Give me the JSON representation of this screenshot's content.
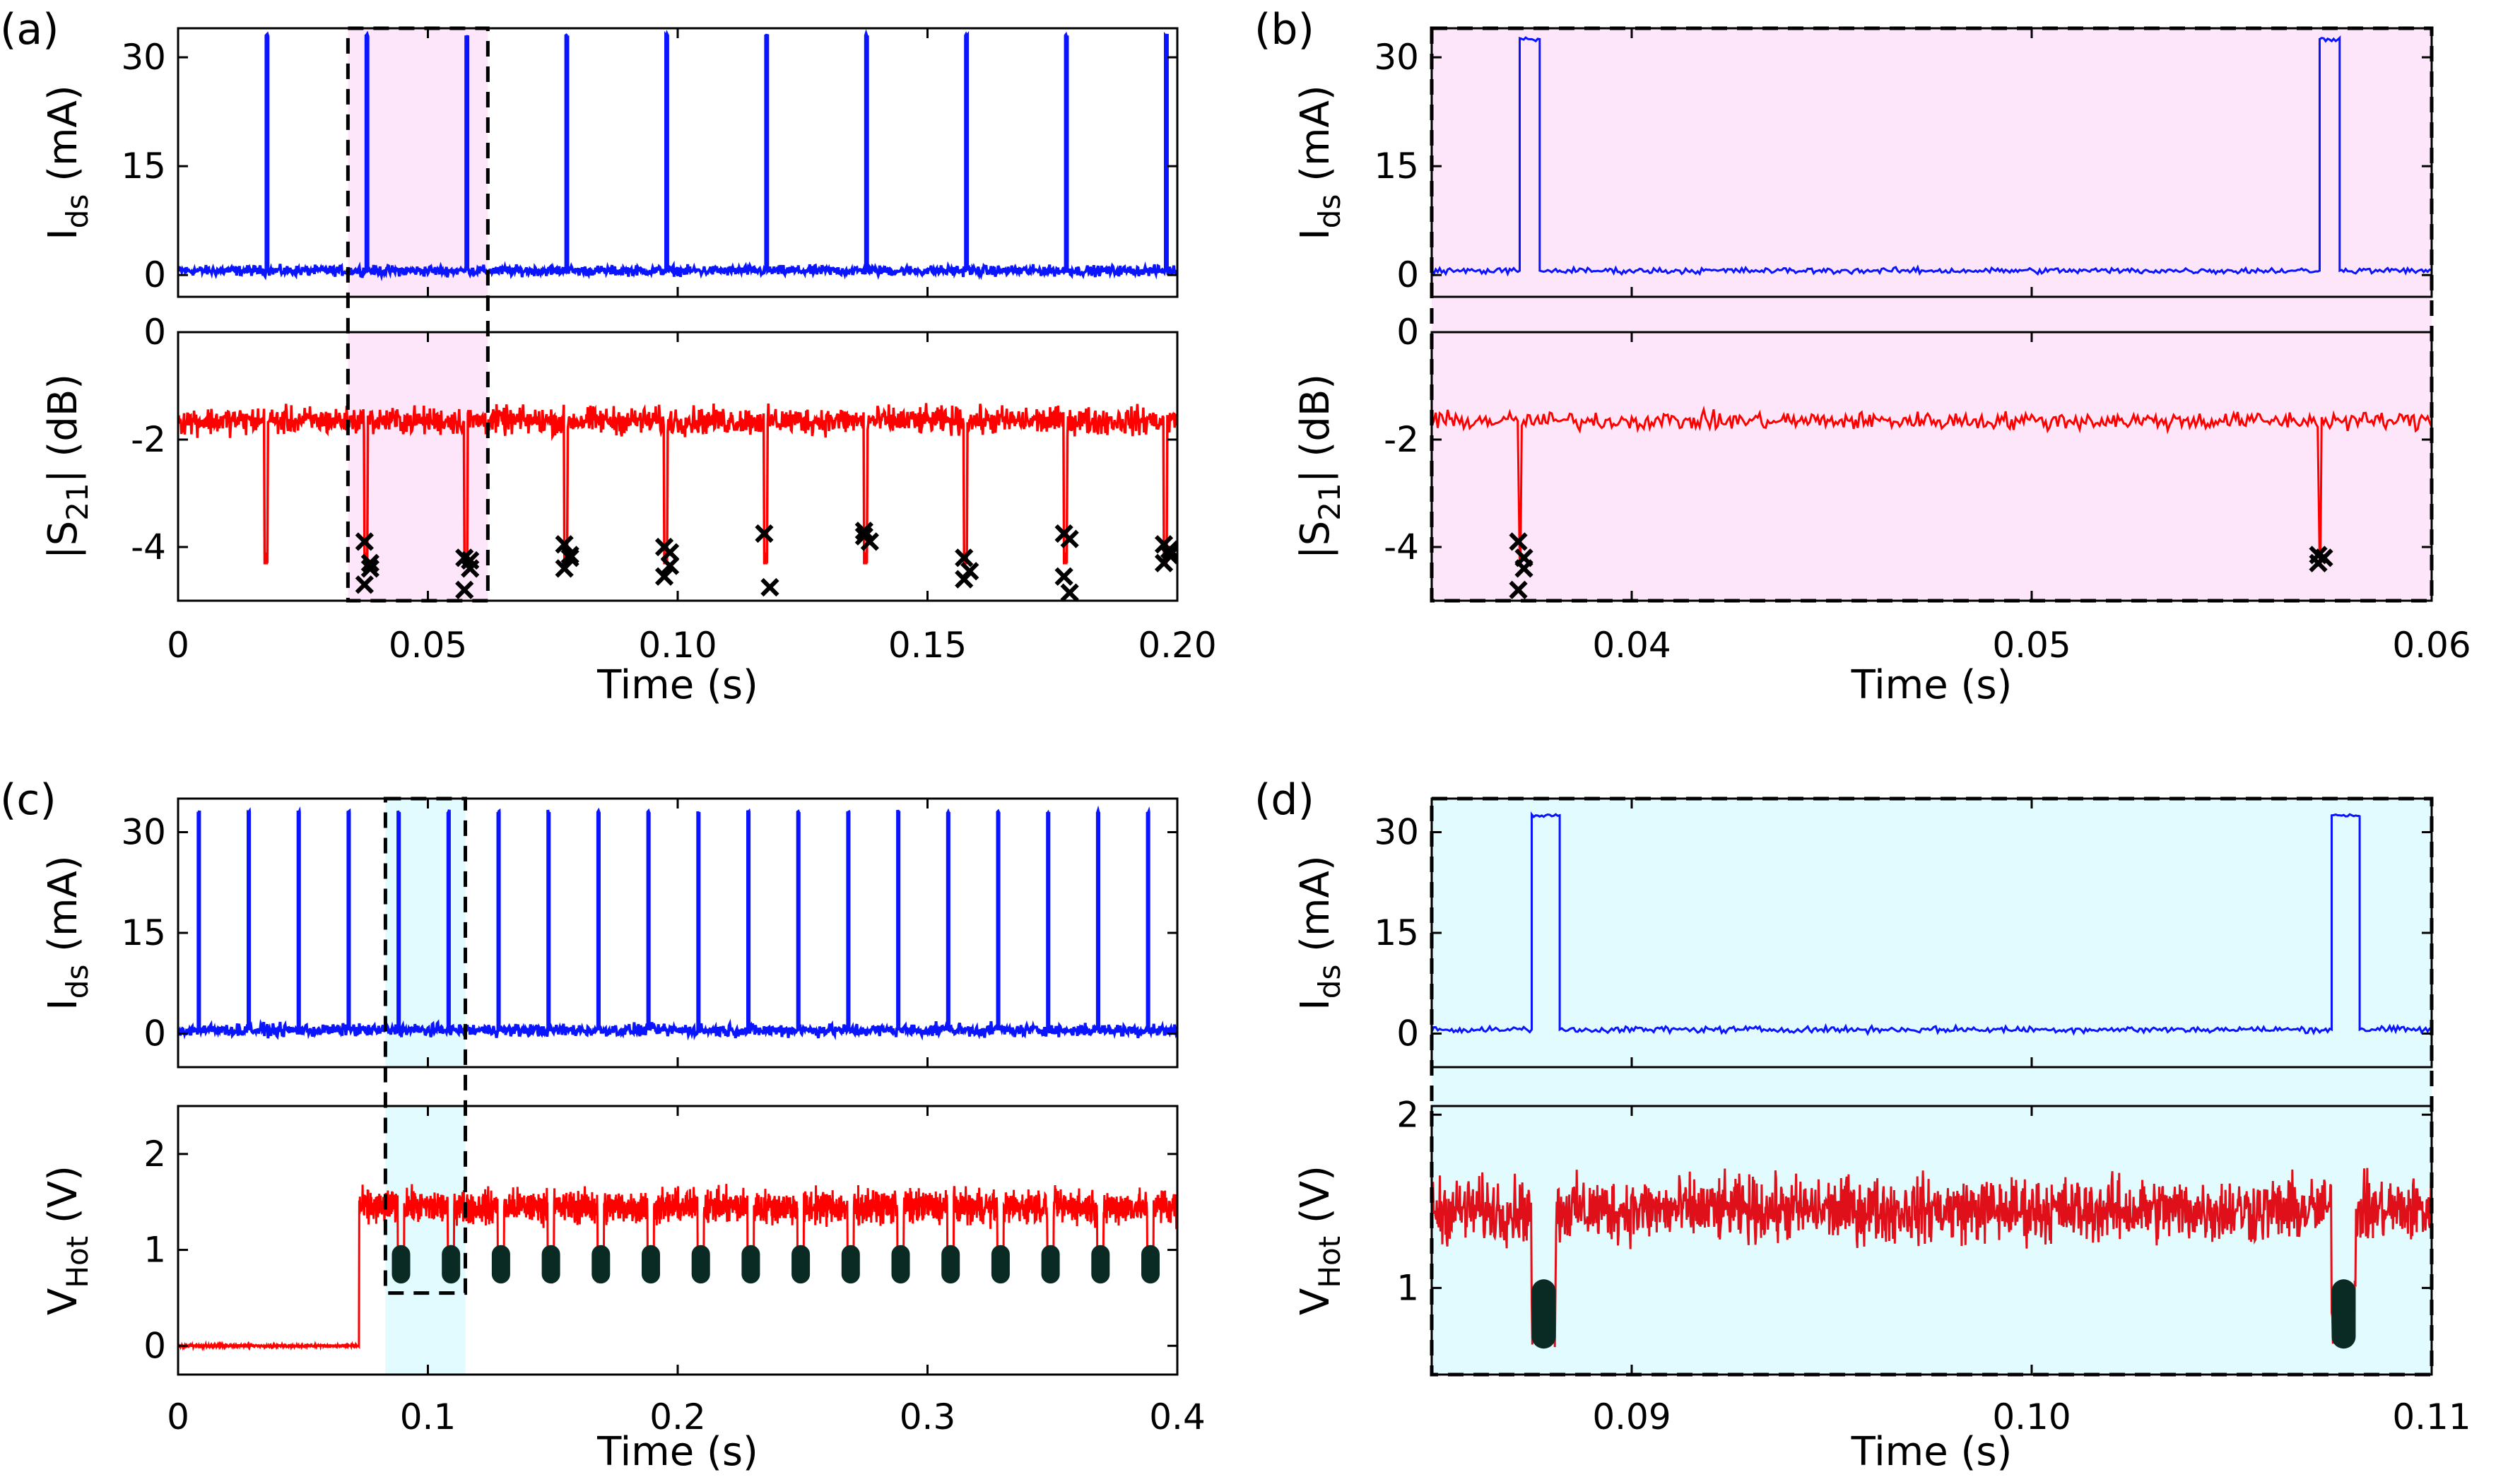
{
  "colors": {
    "ids": "#0a14ff",
    "red": "#ff0000",
    "red_dark": "#e0101a",
    "pink": "#fde6fa",
    "cyan": "#e2fbfe",
    "marker": "#000000",
    "cluster": "#0a2a24"
  },
  "chart_data": [
    {
      "id": "a",
      "panel_label": "(a)",
      "type": "line",
      "xlabel": "Time (s)",
      "xlim": [
        0,
        0.2
      ],
      "xticks": [
        0,
        0.05,
        0.1,
        0.15,
        0.2
      ],
      "xtick_labels": [
        "0",
        "0.05",
        "0.10",
        "0.15",
        "0.20"
      ],
      "highlight": {
        "x0": 0.034,
        "x1": 0.062,
        "color": "pink"
      },
      "top": {
        "ylabel_main": "I",
        "ylabel_sub": "ds",
        "ylabel_unit": " (mA)",
        "ylim": [
          -3,
          34
        ],
        "yticks": [
          0,
          15,
          30
        ],
        "ytick_labels": [
          "0",
          "15",
          "30"
        ],
        "baseline": 0.6,
        "noise": 0.6,
        "pulse_height": 33,
        "pulse_times": [
          0.0176,
          0.0376,
          0.0576,
          0.0776,
          0.0976,
          0.1176,
          0.1376,
          0.1576,
          0.1776,
          0.1976
        ],
        "pulse_width": 0.0004
      },
      "bottom": {
        "ylabel_main": "|S",
        "ylabel_sub": "21",
        "ylabel_unit": "| (dB)",
        "ylim": [
          -5,
          0
        ],
        "yticks": [
          0,
          -2,
          -4
        ],
        "ytick_labels": [
          "0",
          "-2",
          "-4"
        ],
        "baseline": -1.65,
        "noise": 0.22,
        "dip_times": [
          0.0176,
          0.0376,
          0.0576,
          0.0776,
          0.0976,
          0.1176,
          0.1376,
          0.1576,
          0.1776,
          0.1976
        ],
        "dip_depth": -4.3,
        "markers": [
          {
            "x": 0.0376,
            "y": [
              -3.9,
              -4.3,
              -4.7,
              -4.4
            ]
          },
          {
            "x": 0.0576,
            "y": [
              -4.2,
              -4.4,
              -4.8,
              -4.25
            ]
          },
          {
            "x": 0.0776,
            "y": [
              -3.95,
              -4.2,
              -4.4,
              -4.15
            ]
          },
          {
            "x": 0.0976,
            "y": [
              -4.0,
              -4.35,
              -4.55,
              -4.1
            ]
          },
          {
            "x": 0.1176,
            "y": [
              -3.75,
              -4.75
            ]
          },
          {
            "x": 0.1376,
            "y": [
              -3.7,
              -3.9,
              -3.8
            ]
          },
          {
            "x": 0.1576,
            "y": [
              -4.2,
              -4.45,
              -4.6
            ]
          },
          {
            "x": 0.1776,
            "y": [
              -3.75,
              -3.85,
              -4.55,
              -4.85
            ]
          },
          {
            "x": 0.1976,
            "y": [
              -3.95,
              -4.15,
              -4.3,
              -4.05
            ]
          }
        ]
      }
    },
    {
      "id": "b",
      "panel_label": "(b)",
      "type": "line",
      "xlabel": "Time (s)",
      "xlim": [
        0.035,
        0.06
      ],
      "xticks": [
        0.04,
        0.05,
        0.06
      ],
      "xtick_labels": [
        "0.04",
        "0.05",
        "0.06"
      ],
      "highlight": {
        "x0": 0.035,
        "x1": 0.06,
        "color": "pink"
      },
      "top": {
        "ylabel_main": "I",
        "ylabel_sub": "ds",
        "ylabel_unit": " (mA)",
        "ylim": [
          -3,
          34
        ],
        "yticks": [
          0,
          15,
          30
        ],
        "ytick_labels": [
          "0",
          "15",
          "30"
        ],
        "baseline": 0.6,
        "noise": 0.35,
        "pulse_height": 32.5,
        "pulse_times": [
          0.0372,
          0.0572
        ],
        "pulse_width": 0.0005
      },
      "bottom": {
        "ylabel_main": "|S",
        "ylabel_sub": "21",
        "ylabel_unit": "| (dB)",
        "ylim": [
          -5,
          0
        ],
        "yticks": [
          0,
          -2,
          -4
        ],
        "ytick_labels": [
          "0",
          "-2",
          "-4"
        ],
        "baseline": -1.65,
        "noise": 0.14,
        "dip_times": [
          0.0372,
          0.0572
        ],
        "dip_depth": -4.3,
        "markers": [
          {
            "x": 0.0372,
            "y": [
              -3.9,
              -4.4,
              -4.8,
              -4.2
            ]
          },
          {
            "x": 0.0572,
            "y": [
              -4.15,
              -4.2,
              -4.3
            ]
          }
        ]
      }
    },
    {
      "id": "c",
      "panel_label": "(c)",
      "type": "line",
      "xlabel": "Time (s)",
      "xlim": [
        0,
        0.4
      ],
      "xticks": [
        0,
        0.1,
        0.2,
        0.3,
        0.4
      ],
      "xtick_labels": [
        "0",
        "0.1",
        "0.2",
        "0.3",
        "0.4"
      ],
      "highlight": {
        "x0": 0.083,
        "x1": 0.115,
        "color": "cyan"
      },
      "top": {
        "ylabel_main": "I",
        "ylabel_sub": "ds",
        "ylabel_unit": " (mA)",
        "ylim": [
          -5,
          35
        ],
        "yticks": [
          0,
          15,
          30
        ],
        "ytick_labels": [
          "0",
          "15",
          "30"
        ],
        "baseline": 0.5,
        "noise": 0.8,
        "pulse_height": 33,
        "pulse_times": [
          0.008,
          0.028,
          0.048,
          0.068,
          0.088,
          0.108,
          0.128,
          0.148,
          0.168,
          0.188,
          0.208,
          0.228,
          0.248,
          0.268,
          0.288,
          0.308,
          0.328,
          0.348,
          0.368,
          0.388
        ],
        "pulse_width": 0.0006
      },
      "bottom": {
        "ylabel_main": "V",
        "ylabel_sub": "Hot",
        "ylabel_unit": " (V)",
        "ylim": [
          -0.3,
          2.5
        ],
        "yticks": [
          0,
          1,
          2
        ],
        "ytick_labels": [
          "0",
          "1",
          "2"
        ],
        "step_time": 0.0725,
        "low_level": 0.0,
        "high_level": 1.45,
        "noise": 0.15,
        "dip_times": [
          0.088,
          0.108,
          0.128,
          0.148,
          0.168,
          0.188,
          0.208,
          0.228,
          0.248,
          0.268,
          0.288,
          0.308,
          0.328,
          0.348,
          0.368,
          0.388
        ],
        "cluster_y": [
          0.65,
          1.05
        ]
      }
    },
    {
      "id": "d",
      "panel_label": "(d)",
      "type": "line",
      "xlabel": "Time (s)",
      "xlim": [
        0.085,
        0.11
      ],
      "xticks": [
        0.09,
        0.1,
        0.11
      ],
      "xtick_labels": [
        "0.09",
        "0.10",
        "0.11"
      ],
      "highlight": {
        "x0": 0.085,
        "x1": 0.11,
        "color": "cyan"
      },
      "top": {
        "ylabel_main": "I",
        "ylabel_sub": "ds",
        "ylabel_unit": " (mA)",
        "ylim": [
          -5,
          35
        ],
        "yticks": [
          0,
          15,
          30
        ],
        "ytick_labels": [
          "0",
          "15",
          "30"
        ],
        "baseline": 0.6,
        "noise": 0.4,
        "pulse_height": 32.5,
        "pulse_times": [
          0.0875,
          0.1075
        ],
        "pulse_width": 0.0007
      },
      "bottom": {
        "ylabel_main": "V",
        "ylabel_sub": "Hot",
        "ylabel_unit": " (V)",
        "ylim": [
          0.5,
          2.05
        ],
        "yticks": [
          1,
          2
        ],
        "ytick_labels": [
          "1",
          "2"
        ],
        "step_time": 0.0,
        "low_level": 1.45,
        "high_level": 1.45,
        "noise": 0.16,
        "dip_times": [
          0.0875,
          0.1075
        ],
        "cluster_y": [
          0.65,
          1.05
        ]
      }
    }
  ]
}
